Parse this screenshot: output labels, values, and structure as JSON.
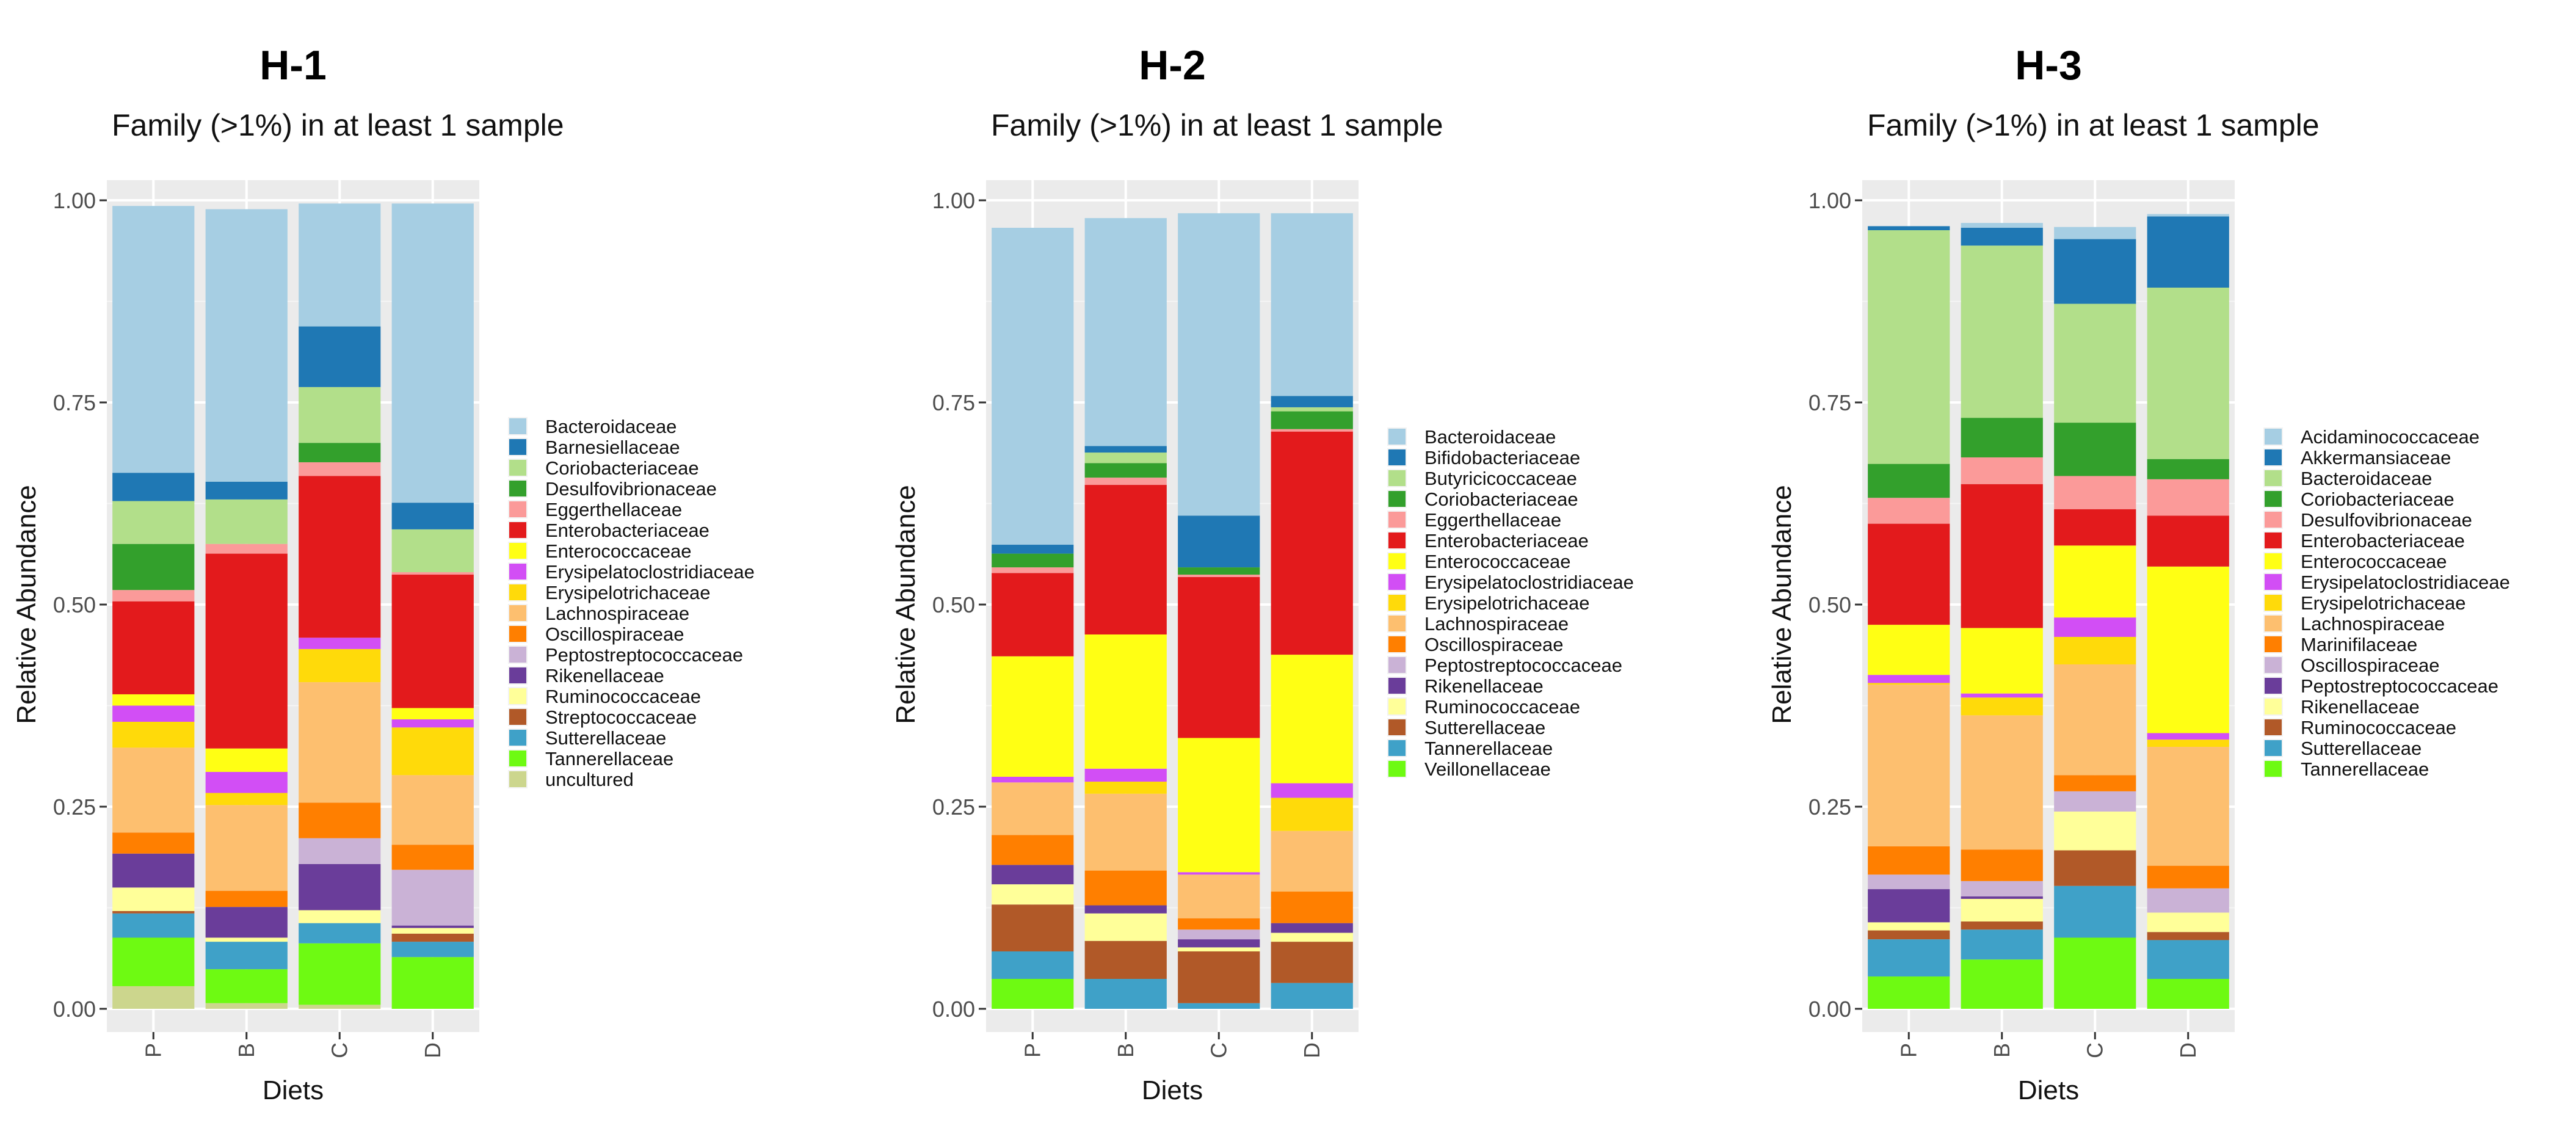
{
  "chart_data": [
    {
      "type": "bar",
      "stacked": true,
      "title": "H-1",
      "subtitle": "Family (>1%) in at least 1 sample",
      "xlabel": "Diets",
      "ylabel": "Relative Abundance",
      "ylim": [
        0,
        1
      ],
      "yticks": [
        "0.00",
        "0.25",
        "0.50",
        "0.75",
        "1.00"
      ],
      "categories": [
        "P",
        "B",
        "C",
        "D"
      ],
      "legend_position": "right",
      "series": [
        {
          "name": "Bacteroidaceae",
          "color": "#A6CEE3",
          "values": [
            0.33,
            0.337,
            0.152,
            0.37
          ]
        },
        {
          "name": "Barnesiellaceae",
          "color": "#1F78B4",
          "values": [
            0.035,
            0.022,
            0.075,
            0.033
          ]
        },
        {
          "name": "Coriobacteriaceae",
          "color": "#B2DF8A",
          "values": [
            0.053,
            0.055,
            0.069,
            0.053
          ]
        },
        {
          "name": "Desulfovibrionaceae",
          "color": "#33A02C",
          "values": [
            0.057,
            0.0,
            0.024,
            0.0
          ]
        },
        {
          "name": "Eggerthellaceae",
          "color": "#FB9A99",
          "values": [
            0.014,
            0.012,
            0.017,
            0.003
          ]
        },
        {
          "name": "Enterobacteriaceae",
          "color": "#E31A1C",
          "values": [
            0.115,
            0.241,
            0.2,
            0.165
          ]
        },
        {
          "name": "Enterococcaceae",
          "color": "#FFFF14",
          "values": [
            0.014,
            0.029,
            0.0,
            0.014
          ]
        },
        {
          "name": "Erysipelatoclostridiaceae",
          "color": "#D24EF5",
          "values": [
            0.02,
            0.026,
            0.014,
            0.01
          ]
        },
        {
          "name": "Erysipelotrichaceae",
          "color": "#FFDA0A",
          "values": [
            0.032,
            0.015,
            0.041,
            0.059
          ]
        },
        {
          "name": "Lachnospiraceae",
          "color": "#FDBF6F",
          "values": [
            0.105,
            0.106,
            0.149,
            0.086
          ]
        },
        {
          "name": "Oscillospiraceae",
          "color": "#FF7F00",
          "values": [
            0.026,
            0.02,
            0.044,
            0.031
          ]
        },
        {
          "name": "Peptostreptococcaceae",
          "color": "#CAB2D6",
          "values": [
            0.0,
            0.0,
            0.032,
            0.069
          ]
        },
        {
          "name": "Rikenellaceae",
          "color": "#6A3D9A",
          "values": [
            0.042,
            0.038,
            0.057,
            0.003
          ]
        },
        {
          "name": "Ruminococcaceae",
          "color": "#FFFF99",
          "values": [
            0.029,
            0.005,
            0.016,
            0.007
          ]
        },
        {
          "name": "Streptococcaceae",
          "color": "#B15928",
          "values": [
            0.003,
            0.0,
            0.0,
            0.01
          ]
        },
        {
          "name": "Sutterellaceae",
          "color": "#3FA1C8",
          "values": [
            0.03,
            0.034,
            0.025,
            0.019
          ]
        },
        {
          "name": "Tannerellaceae",
          "color": "#6EFA12",
          "values": [
            0.06,
            0.042,
            0.076,
            0.064
          ]
        },
        {
          "name": "uncultured",
          "color": "#CCD68D",
          "values": [
            0.028,
            0.007,
            0.005,
            0.0
          ]
        }
      ]
    },
    {
      "type": "bar",
      "stacked": true,
      "title": "H-2",
      "subtitle": "Family (>1%) in at least 1 sample",
      "xlabel": "Diets",
      "ylabel": "Relative Abundance",
      "ylim": [
        0,
        1
      ],
      "yticks": [
        "0.00",
        "0.25",
        "0.50",
        "0.75",
        "1.00"
      ],
      "categories": [
        "P",
        "B",
        "C",
        "D"
      ],
      "legend_position": "right",
      "series": [
        {
          "name": "Bacteroidaceae",
          "color": "#A6CEE3",
          "values": [
            0.392,
            0.282,
            0.374,
            0.226
          ]
        },
        {
          "name": "Bifidobacteriaceae",
          "color": "#1F78B4",
          "values": [
            0.011,
            0.008,
            0.064,
            0.014
          ]
        },
        {
          "name": "Butyricicoccaceae",
          "color": "#B2DF8A",
          "values": [
            0.0,
            0.013,
            0.0,
            0.005
          ]
        },
        {
          "name": "Coriobacteriaceae",
          "color": "#33A02C",
          "values": [
            0.017,
            0.018,
            0.009,
            0.022
          ]
        },
        {
          "name": "Eggerthellaceae",
          "color": "#FB9A99",
          "values": [
            0.007,
            0.009,
            0.003,
            0.003
          ]
        },
        {
          "name": "Enterobacteriaceae",
          "color": "#E31A1C",
          "values": [
            0.103,
            0.185,
            0.199,
            0.276
          ]
        },
        {
          "name": "Enterococcaceae",
          "color": "#FFFF14",
          "values": [
            0.149,
            0.166,
            0.166,
            0.159
          ]
        },
        {
          "name": "Erysipelatoclostridiaceae",
          "color": "#D24EF5",
          "values": [
            0.007,
            0.016,
            0.003,
            0.018
          ]
        },
        {
          "name": "Erysipelotrichaceae",
          "color": "#FFDA0A",
          "values": [
            0.0,
            0.015,
            0.0,
            0.041
          ]
        },
        {
          "name": "Lachnospiraceae",
          "color": "#FDBF6F",
          "values": [
            0.065,
            0.095,
            0.054,
            0.075
          ]
        },
        {
          "name": "Oscillospiraceae",
          "color": "#FF7F00",
          "values": [
            0.037,
            0.043,
            0.014,
            0.039
          ]
        },
        {
          "name": "Peptostreptococcaceae",
          "color": "#CAB2D6",
          "values": [
            0.0,
            0.0,
            0.012,
            0.0
          ]
        },
        {
          "name": "Rikenellaceae",
          "color": "#6A3D9A",
          "values": [
            0.024,
            0.01,
            0.01,
            0.012
          ]
        },
        {
          "name": "Ruminococcaceae",
          "color": "#FFFF99",
          "values": [
            0.025,
            0.034,
            0.005,
            0.011
          ]
        },
        {
          "name": "Sutterellaceae",
          "color": "#B15928",
          "values": [
            0.058,
            0.047,
            0.064,
            0.051
          ]
        },
        {
          "name": "Tannerellaceae",
          "color": "#3FA1C8",
          "values": [
            0.034,
            0.037,
            0.007,
            0.032
          ]
        },
        {
          "name": "Veillonellaceae",
          "color": "#6EFA12",
          "values": [
            0.037,
            0.0,
            0.0,
            0.0
          ]
        }
      ]
    },
    {
      "type": "bar",
      "stacked": true,
      "title": "H-3",
      "subtitle": "Family (>1%) in at least 1 sample",
      "xlabel": "Diets",
      "ylabel": "Relative Abundance",
      "ylim": [
        0,
        1
      ],
      "yticks": [
        "0.00",
        "0.25",
        "0.50",
        "0.75",
        "1.00"
      ],
      "categories": [
        "P",
        "B",
        "C",
        "D"
      ],
      "legend_position": "right",
      "series": [
        {
          "name": "Acidaminococcaceae",
          "color": "#A6CEE3",
          "values": [
            0.0,
            0.006,
            0.015,
            0.003
          ]
        },
        {
          "name": "Akkermansiaceae",
          "color": "#1F78B4",
          "values": [
            0.005,
            0.022,
            0.08,
            0.088
          ]
        },
        {
          "name": "Bacteroidaceae",
          "color": "#B2DF8A",
          "values": [
            0.289,
            0.213,
            0.147,
            0.212
          ]
        },
        {
          "name": "Coriobacteriaceae",
          "color": "#33A02C",
          "values": [
            0.042,
            0.049,
            0.066,
            0.025
          ]
        },
        {
          "name": "Desulfovibrionaceae",
          "color": "#FB9A99",
          "values": [
            0.032,
            0.033,
            0.041,
            0.045
          ]
        },
        {
          "name": "Enterobacteriaceae",
          "color": "#E31A1C",
          "values": [
            0.125,
            0.178,
            0.045,
            0.063
          ]
        },
        {
          "name": "Enterococcaceae",
          "color": "#FFFF14",
          "values": [
            0.062,
            0.081,
            0.089,
            0.206
          ]
        },
        {
          "name": "Erysipelatoclostridiaceae",
          "color": "#D24EF5",
          "values": [
            0.01,
            0.005,
            0.024,
            0.008
          ]
        },
        {
          "name": "Erysipelotrichaceae",
          "color": "#FFDA0A",
          "values": [
            0.002,
            0.022,
            0.034,
            0.009
          ]
        },
        {
          "name": "Lachnospiraceae",
          "color": "#FDBF6F",
          "values": [
            0.2,
            0.166,
            0.137,
            0.147
          ]
        },
        {
          "name": "Marinifilaceae",
          "color": "#FF7F00",
          "values": [
            0.035,
            0.039,
            0.02,
            0.028
          ]
        },
        {
          "name": "Oscillospiraceae",
          "color": "#CAB2D6",
          "values": [
            0.018,
            0.019,
            0.025,
            0.03
          ]
        },
        {
          "name": "Peptostreptococcaceae",
          "color": "#6A3D9A",
          "values": [
            0.041,
            0.003,
            0.0,
            0.0
          ]
        },
        {
          "name": "Rikenellaceae",
          "color": "#FFFF99",
          "values": [
            0.01,
            0.028,
            0.048,
            0.024
          ]
        },
        {
          "name": "Ruminococcaceae",
          "color": "#B15928",
          "values": [
            0.011,
            0.01,
            0.044,
            0.01
          ]
        },
        {
          "name": "Sutterellaceae",
          "color": "#3FA1C8",
          "values": [
            0.046,
            0.037,
            0.064,
            0.048
          ]
        },
        {
          "name": "Tannerellaceae",
          "color": "#6EFA12",
          "values": [
            0.04,
            0.061,
            0.088,
            0.037
          ]
        }
      ]
    }
  ]
}
